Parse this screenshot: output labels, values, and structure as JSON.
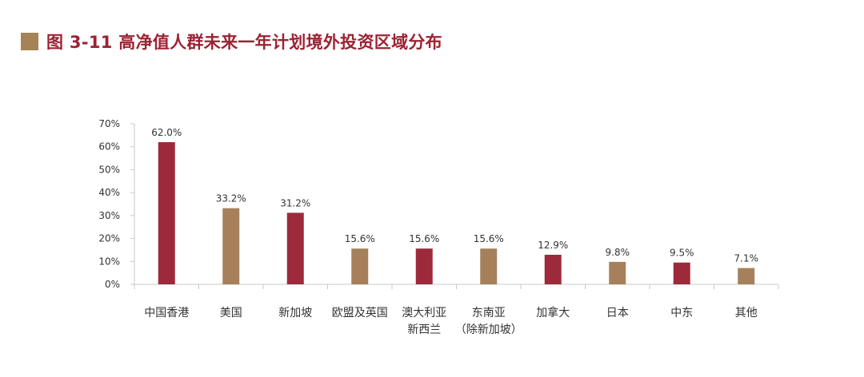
{
  "header": {
    "title": "图 3-11  高净值人群未来一年计划境外投资区域分布"
  },
  "colors": {
    "title": "#9c2233",
    "title_square": "#a68355",
    "bar_red": "#9c2a3a",
    "bar_tan": "#a6805a",
    "axis": "#c8c8c8"
  },
  "chart_data": {
    "type": "bar",
    "title": "图 3-11  高净值人群未来一年计划境外投资区域分布",
    "xlabel": "",
    "ylabel": "",
    "ylim": [
      0,
      70
    ],
    "y_ticks": [
      {
        "value": 0,
        "label": "0%"
      },
      {
        "value": 10,
        "label": "10%"
      },
      {
        "value": 20,
        "label": "20%"
      },
      {
        "value": 30,
        "label": "30%"
      },
      {
        "value": 40,
        "label": "40%"
      },
      {
        "value": 50,
        "label": "50%"
      },
      {
        "value": 60,
        "label": "60%"
      },
      {
        "value": 70,
        "label": "70%"
      }
    ],
    "grid": false,
    "legend": "none",
    "categories": [
      [
        "中国香港"
      ],
      [
        "美国"
      ],
      [
        "新加坡"
      ],
      [
        "欧盟及英国"
      ],
      [
        "澳大利亚",
        "新西兰"
      ],
      [
        "东南亚",
        "（除新加坡）"
      ],
      [
        "加拿大"
      ],
      [
        "日本"
      ],
      [
        "中东"
      ],
      [
        "其他"
      ]
    ],
    "values": [
      62.0,
      33.2,
      31.2,
      15.6,
      15.6,
      15.6,
      12.9,
      9.8,
      9.5,
      7.1
    ],
    "data_labels": [
      "62.0%",
      "33.2%",
      "31.2%",
      "15.6%",
      "15.6%",
      "15.6%",
      "12.9%",
      "9.8%",
      "9.5%",
      "7.1%"
    ],
    "bar_colors": [
      "#9c2a3a",
      "#a6805a",
      "#9c2a3a",
      "#a6805a",
      "#9c2a3a",
      "#a6805a",
      "#9c2a3a",
      "#a6805a",
      "#9c2a3a",
      "#a6805a"
    ]
  }
}
